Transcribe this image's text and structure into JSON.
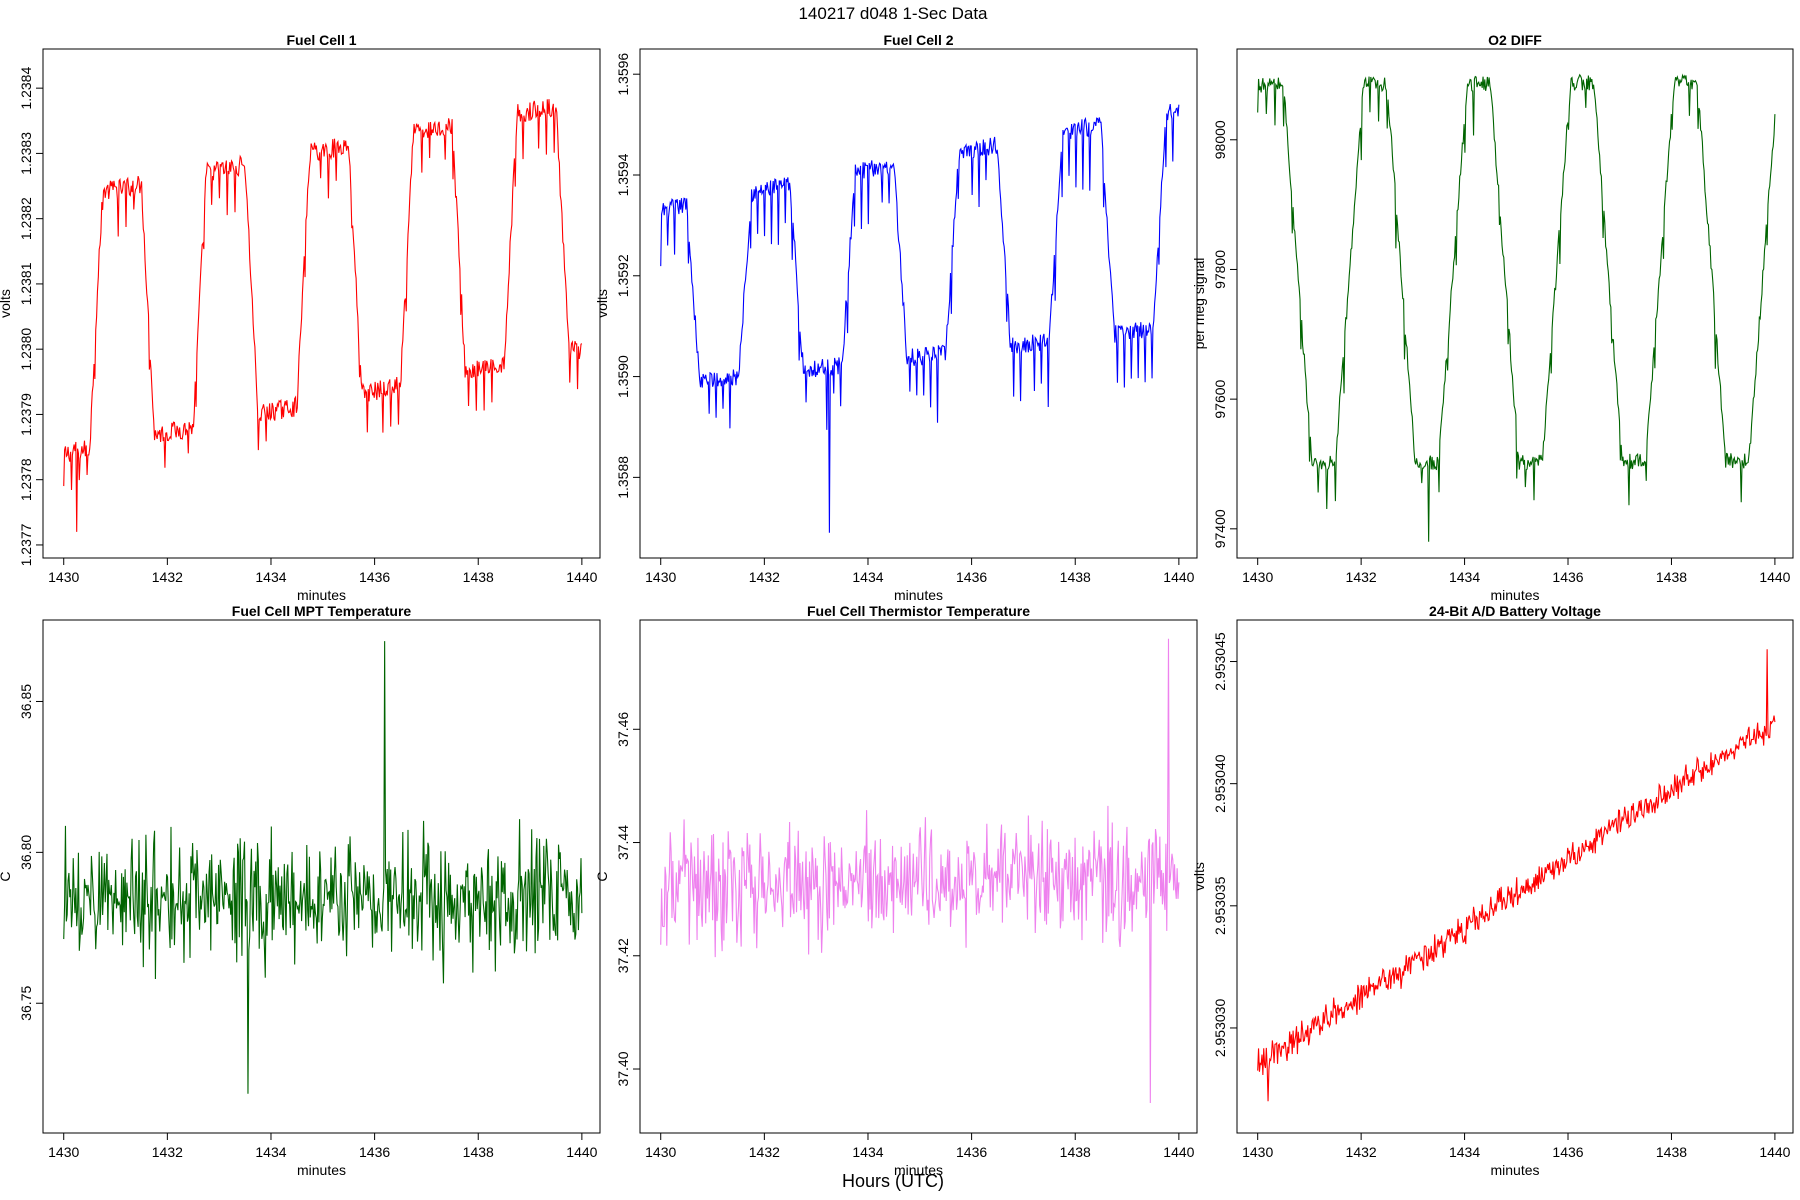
{
  "figure": {
    "suptitle": "140217   d048   1-Sec Data",
    "bottom_label": "Hours (UTC)"
  },
  "chart_data": [
    {
      "type": "line",
      "title": "Fuel Cell 1",
      "xlabel": "minutes",
      "ylabel": "volts",
      "color": "#ff0000",
      "xlim": [
        1429.6,
        1440.35
      ],
      "ylim": [
        1.23768,
        1.23846
      ],
      "xticks": [
        1430,
        1432,
        1434,
        1436,
        1438,
        1440
      ],
      "xtick_labels": [
        "1430",
        "1432",
        "1434",
        "1436",
        "1438",
        "1440"
      ],
      "yticks": [
        1.2377,
        1.2378,
        1.2379,
        1.238,
        1.2381,
        1.2382,
        1.2383,
        1.2384
      ],
      "ytick_labels": [
        "1.2377",
        "1.2378",
        "1.2379",
        "1.2380",
        "1.2381",
        "1.2382",
        "1.2383",
        "1.2384"
      ],
      "series": [
        {
          "name": "Fuel Cell 1",
          "pattern": "square",
          "x_range": [
            1430,
            1440
          ],
          "n_points": 600,
          "period_min": 2.0,
          "high_first": false,
          "transition_min": 0.25,
          "low_start": 1.23784,
          "low_end": 1.238,
          "high_start": 1.23823,
          "high_end": 1.23838,
          "noise": 1.5e-05,
          "spike_depth": 7e-05,
          "spike_every_s": 9,
          "min_marker": {
            "x": 1430.25,
            "y": 1.23772
          }
        }
      ]
    },
    {
      "type": "line",
      "title": "Fuel Cell 2",
      "xlabel": "minutes",
      "ylabel": "volts",
      "color": "#0000ff",
      "xlim": [
        1429.6,
        1440.35
      ],
      "ylim": [
        1.35864,
        1.35965
      ],
      "xticks": [
        1430,
        1432,
        1434,
        1436,
        1438,
        1440
      ],
      "xtick_labels": [
        "1430",
        "1432",
        "1434",
        "1436",
        "1438",
        "1440"
      ],
      "yticks": [
        1.3588,
        1.359,
        1.3592,
        1.3594,
        1.3596
      ],
      "ytick_labels": [
        "1.3588",
        "1.3590",
        "1.3592",
        "1.3594",
        "1.3596"
      ],
      "series": [
        {
          "name": "Fuel Cell 2",
          "pattern": "square",
          "x_range": [
            1430,
            1440
          ],
          "n_points": 600,
          "period_min": 2.0,
          "high_first": true,
          "transition_min": 0.25,
          "low_start": 1.35898,
          "low_end": 1.3591,
          "high_start": 1.35933,
          "high_end": 1.35953,
          "noise": 1.8e-05,
          "spike_depth": 0.00012,
          "spike_every_s": 8,
          "min_marker": {
            "x": 1433.25,
            "y": 1.35869
          }
        }
      ]
    },
    {
      "type": "line",
      "title": "O2 DIFF",
      "xlabel": "minutes",
      "ylabel": "per meg signal",
      "color": "#006400",
      "xlim": [
        1429.6,
        1440.35
      ],
      "ylim": [
        97355,
        98140
      ],
      "xticks": [
        1430,
        1432,
        1434,
        1436,
        1438,
        1440
      ],
      "xtick_labels": [
        "1430",
        "1432",
        "1434",
        "1436",
        "1438",
        "1440"
      ],
      "yticks": [
        97400,
        97600,
        97800,
        98000
      ],
      "ytick_labels": [
        "97400",
        "97600",
        "97800",
        "98000"
      ],
      "series": [
        {
          "name": "O2 DIFF",
          "pattern": "square",
          "x_range": [
            1430,
            1440
          ],
          "n_points": 600,
          "period_min": 2.0,
          "high_first": true,
          "transition_min": 0.55,
          "low_start": 97500,
          "low_end": 97505,
          "high_start": 98085,
          "high_end": 98090,
          "noise": 12,
          "spike_depth": 70,
          "spike_every_s": 10,
          "min_marker": {
            "x": 1433.3,
            "y": 97380
          }
        }
      ]
    },
    {
      "type": "line",
      "title": "Fuel Cell MPT Temperature",
      "xlabel": "minutes",
      "ylabel": "C",
      "color": "#006400",
      "xlim": [
        1429.6,
        1440.35
      ],
      "ylim": [
        36.707,
        36.877
      ],
      "xticks": [
        1430,
        1432,
        1434,
        1436,
        1438,
        1440
      ],
      "xtick_labels": [
        "1430",
        "1432",
        "1434",
        "1436",
        "1438",
        "1440"
      ],
      "yticks": [
        36.75,
        36.8,
        36.85
      ],
      "ytick_labels": [
        "36.75",
        "36.80",
        "36.85"
      ],
      "series": [
        {
          "name": "MPT Temperature",
          "pattern": "noise",
          "x_range": [
            1430,
            1440
          ],
          "n_points": 600,
          "base_start": 36.785,
          "base_end": 36.785,
          "noise": 0.019,
          "max_marker": {
            "x": 1436.2,
            "y": 36.87
          },
          "min_marker": {
            "x": 1433.55,
            "y": 36.72
          }
        }
      ]
    },
    {
      "type": "line",
      "title": "Fuel Cell Thermistor Temperature",
      "xlabel": "minutes",
      "ylabel": "C",
      "color": "#ee82ee",
      "xlim": [
        1429.6,
        1440.35
      ],
      "ylim": [
        37.3887,
        37.4793
      ],
      "xticks": [
        1430,
        1432,
        1434,
        1436,
        1438,
        1440
      ],
      "xtick_labels": [
        "1430",
        "1432",
        "1434",
        "1436",
        "1438",
        "1440"
      ],
      "yticks": [
        37.4,
        37.42,
        37.44,
        37.46
      ],
      "ytick_labels": [
        "37.40",
        "37.42",
        "37.44",
        "37.46"
      ],
      "series": [
        {
          "name": "Thermistor Temperature",
          "pattern": "noise",
          "x_range": [
            1430,
            1440
          ],
          "n_points": 600,
          "base_start": 37.432,
          "base_end": 37.434,
          "noise": 0.009,
          "max_marker": {
            "x": 1439.8,
            "y": 37.476
          },
          "min_marker": {
            "x": 1439.45,
            "y": 37.394
          }
        }
      ]
    },
    {
      "type": "line",
      "title": "24-Bit A/D Battery Voltage",
      "xlabel": "minutes",
      "ylabel": "volts",
      "color": "#ff0000",
      "xlim": [
        1429.6,
        1440.35
      ],
      "ylim": [
        2.9530257,
        2.9530467
      ],
      "xticks": [
        1430,
        1432,
        1434,
        1436,
        1438,
        1440
      ],
      "xtick_labels": [
        "1430",
        "1432",
        "1434",
        "1436",
        "1438",
        "1440"
      ],
      "yticks": [
        2.95303,
        2.953035,
        2.95304,
        2.953045
      ],
      "ytick_labels": [
        "2.953030",
        "2.953035",
        "2.953040",
        "2.953045"
      ],
      "series": [
        {
          "name": "Battery Voltage",
          "pattern": "noise",
          "x_range": [
            1430,
            1440
          ],
          "n_points": 600,
          "base_start": 2.9530285,
          "base_end": 2.9530425,
          "noise": 5.5e-07,
          "max_marker": {
            "x": 1439.85,
            "y": 2.9530455
          },
          "min_marker": {
            "x": 1430.2,
            "y": 2.953027
          }
        }
      ]
    }
  ]
}
